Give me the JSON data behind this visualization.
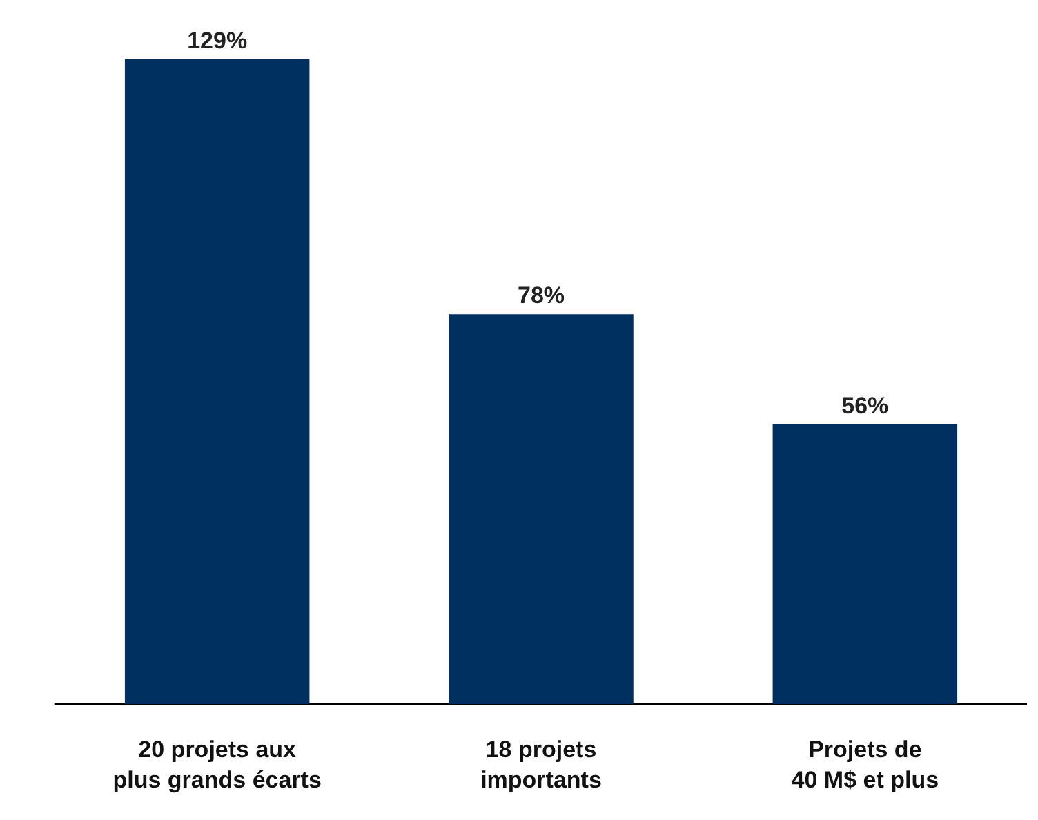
{
  "chart_data": {
    "type": "bar",
    "categories": [
      "20 projets aux\nplus grands écarts",
      "18 projets\nimportants",
      "Projets de\n40 M$ et plus"
    ],
    "values": [
      129,
      78,
      56
    ],
    "value_labels": [
      "129%",
      "78%",
      "56%"
    ],
    "color": "#003060"
  }
}
